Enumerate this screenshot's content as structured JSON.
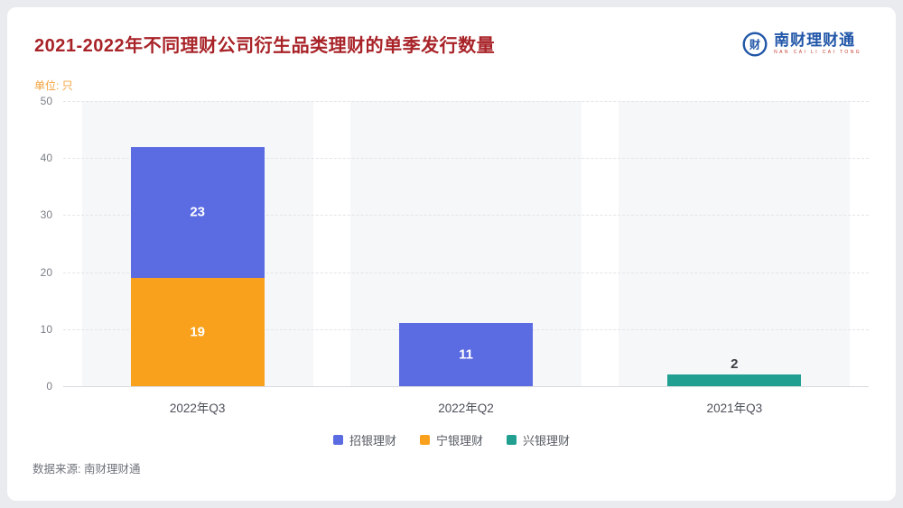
{
  "page": {
    "title": "2021-2022年不同理财公司衍生品类理财的单季发行数量",
    "unit_label": "单位: 只",
    "source": "数据来源: 南财理财通"
  },
  "logo": {
    "text": "南财理财通",
    "subtext": "NAN CAI LI CAI TONG",
    "icon_glyph": "财",
    "color": "#2156a8"
  },
  "chart_data": {
    "type": "bar",
    "stacked": true,
    "title": "2021-2022年不同理财公司衍生品类理财的单季发行数量",
    "unit": "只",
    "categories": [
      "2022年Q3",
      "2022年Q2",
      "2021年Q3"
    ],
    "series": [
      {
        "name": "宁银理财",
        "color": "#f9a11c",
        "values": [
          19,
          0,
          0
        ]
      },
      {
        "name": "招银理财",
        "color": "#5b6be1",
        "values": [
          23,
          11,
          0
        ]
      },
      {
        "name": "兴银理财",
        "color": "#21a092",
        "values": [
          0,
          0,
          2
        ]
      }
    ],
    "legend": [
      {
        "name": "招银理财",
        "color": "#5b6be1"
      },
      {
        "name": "宁银理财",
        "color": "#f9a11c"
      },
      {
        "name": "兴银理财",
        "color": "#21a092"
      }
    ],
    "ylim": [
      0,
      50
    ],
    "yticks": [
      0,
      10,
      20,
      30,
      40,
      50
    ],
    "grid": "dashed",
    "legend_position": "bottom"
  }
}
